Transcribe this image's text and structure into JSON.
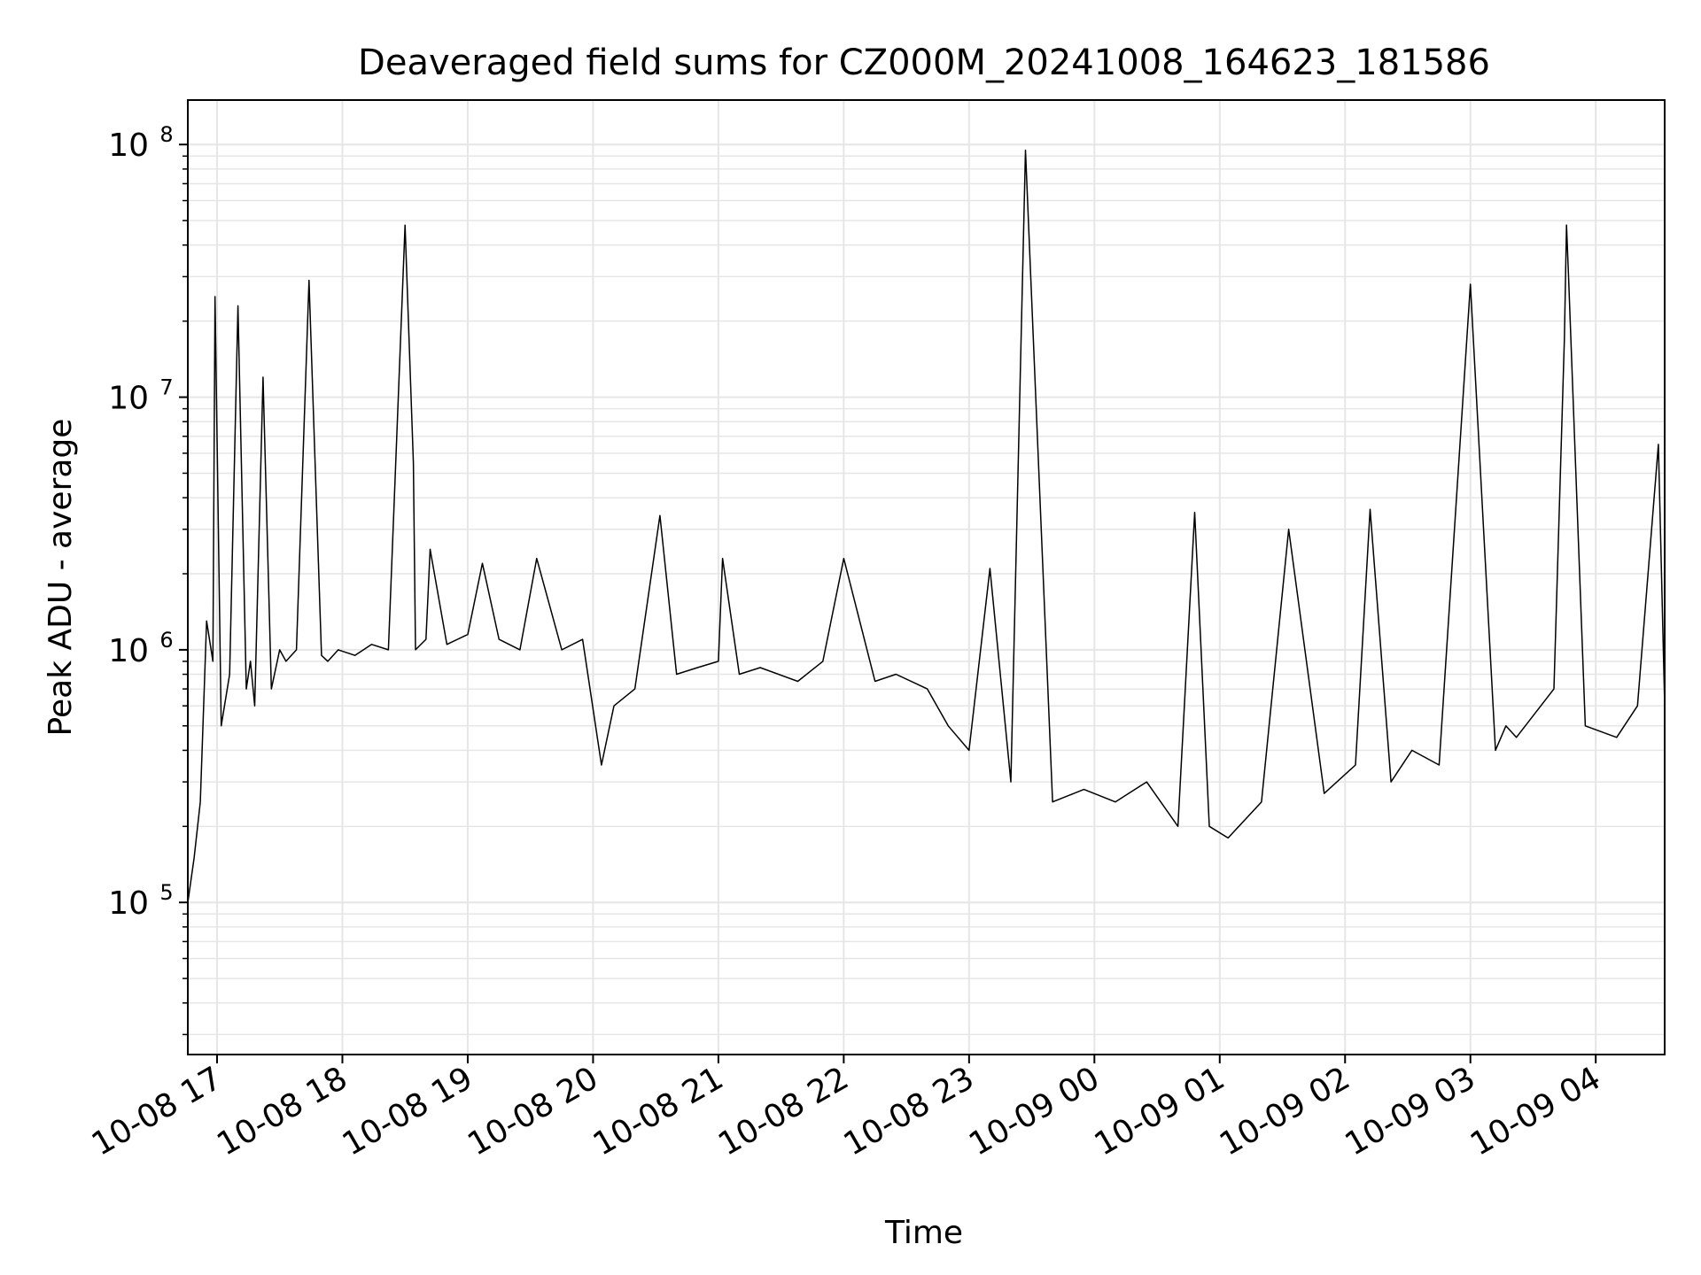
{
  "chart_data": {
    "type": "line",
    "title": "Deaveraged field sums for CZ000M_20241008_164623_181586",
    "xlabel": "Time",
    "ylabel": "Peak ADU - average",
    "yscale": "log",
    "ylim": [
      25000,
      150000000
    ],
    "xlim": [
      "2024-10-08 16:46",
      "2024-10-09 04:33"
    ],
    "grid": true,
    "legend": "none",
    "line_color": "#000000",
    "y_ticks": [
      {
        "value": 100000,
        "base": "10",
        "exp": "5"
      },
      {
        "value": 1000000,
        "base": "10",
        "exp": "6"
      },
      {
        "value": 10000000,
        "base": "10",
        "exp": "7"
      },
      {
        "value": 100000000,
        "base": "10",
        "exp": "8"
      }
    ],
    "x_ticks": [
      {
        "value": "2024-10-08 17:00",
        "label": "10-08 17"
      },
      {
        "value": "2024-10-08 18:00",
        "label": "10-08 18"
      },
      {
        "value": "2024-10-08 19:00",
        "label": "10-08 19"
      },
      {
        "value": "2024-10-08 20:00",
        "label": "10-08 20"
      },
      {
        "value": "2024-10-08 21:00",
        "label": "10-08 21"
      },
      {
        "value": "2024-10-08 22:00",
        "label": "10-08 22"
      },
      {
        "value": "2024-10-08 23:00",
        "label": "10-08 23"
      },
      {
        "value": "2024-10-09 00:00",
        "label": "10-09 00"
      },
      {
        "value": "2024-10-09 01:00",
        "label": "10-09 01"
      },
      {
        "value": "2024-10-09 02:00",
        "label": "10-09 02"
      },
      {
        "value": "2024-10-09 03:00",
        "label": "10-09 03"
      },
      {
        "value": "2024-10-09 04:00",
        "label": "10-09 04"
      }
    ],
    "series": [
      {
        "x": [
          "2024-10-08 16:46",
          "2024-10-08 16:49",
          "2024-10-08 16:52",
          "2024-10-08 16:55",
          "2024-10-08 16:58",
          "2024-10-08 16:59",
          "2024-10-08 17:02",
          "2024-10-08 17:06",
          "2024-10-08 17:10",
          "2024-10-08 17:14",
          "2024-10-08 17:16",
          "2024-10-08 17:18",
          "2024-10-08 17:22",
          "2024-10-08 17:26",
          "2024-10-08 17:30",
          "2024-10-08 17:33",
          "2024-10-08 17:38",
          "2024-10-08 17:44",
          "2024-10-08 17:50",
          "2024-10-08 17:53",
          "2024-10-08 17:58",
          "2024-10-08 18:06",
          "2024-10-08 18:14",
          "2024-10-08 18:22",
          "2024-10-08 18:30",
          "2024-10-08 18:34",
          "2024-10-08 18:35",
          "2024-10-08 18:40",
          "2024-10-08 18:42",
          "2024-10-08 18:50",
          "2024-10-08 19:00",
          "2024-10-08 19:07",
          "2024-10-08 19:15",
          "2024-10-08 19:25",
          "2024-10-08 19:33",
          "2024-10-08 19:45",
          "2024-10-08 19:55",
          "2024-10-08 20:04",
          "2024-10-08 20:10",
          "2024-10-08 20:20",
          "2024-10-08 20:32",
          "2024-10-08 20:40",
          "2024-10-08 20:50",
          "2024-10-08 21:00",
          "2024-10-08 21:02",
          "2024-10-08 21:10",
          "2024-10-08 21:20",
          "2024-10-08 21:38",
          "2024-10-08 21:50",
          "2024-10-08 22:00",
          "2024-10-08 22:15",
          "2024-10-08 22:25",
          "2024-10-08 22:40",
          "2024-10-08 22:50",
          "2024-10-08 23:00",
          "2024-10-08 23:10",
          "2024-10-08 23:20",
          "2024-10-08 23:27",
          "2024-10-08 23:40",
          "2024-10-08 23:55",
          "2024-10-09 00:10",
          "2024-10-09 00:25",
          "2024-10-09 00:40",
          "2024-10-09 00:48",
          "2024-10-09 00:55",
          "2024-10-09 01:04",
          "2024-10-09 01:20",
          "2024-10-09 01:33",
          "2024-10-09 01:50",
          "2024-10-09 02:05",
          "2024-10-09 02:12",
          "2024-10-09 02:22",
          "2024-10-09 02:32",
          "2024-10-09 02:45",
          "2024-10-09 03:00",
          "2024-10-09 03:12",
          "2024-10-09 03:17",
          "2024-10-09 03:22",
          "2024-10-09 03:40",
          "2024-10-09 03:45",
          "2024-10-09 03:46",
          "2024-10-09 03:47",
          "2024-10-09 03:55",
          "2024-10-09 04:10",
          "2024-10-09 04:20",
          "2024-10-09 04:30",
          "2024-10-09 04:33"
        ],
        "y": [
          100000,
          150000,
          250000,
          1300000,
          900000,
          25000000,
          500000,
          800000,
          23000000,
          700000,
          900000,
          600000,
          12000000,
          700000,
          1000000,
          900000,
          1000000,
          29000000,
          950000,
          900000,
          1000000,
          950000,
          1050000,
          1000000,
          48000000,
          5500000,
          1000000,
          1100000,
          2500000,
          1050000,
          1150000,
          2200000,
          1100000,
          1000000,
          2300000,
          1000000,
          1100000,
          350000,
          600000,
          700000,
          3400000,
          800000,
          850000,
          900000,
          2300000,
          800000,
          850000,
          750000,
          900000,
          2300000,
          750000,
          800000,
          700000,
          500000,
          400000,
          2100000,
          300000,
          95000000,
          250000,
          280000,
          250000,
          300000,
          200000,
          3500000,
          200000,
          180000,
          250000,
          3000000,
          270000,
          350000,
          3600000,
          300000,
          400000,
          350000,
          28000000,
          400000,
          500000,
          450000,
          700000,
          17000000,
          48000000,
          30000000,
          500000,
          450000,
          600000,
          6500000,
          600000
        ]
      }
    ]
  }
}
